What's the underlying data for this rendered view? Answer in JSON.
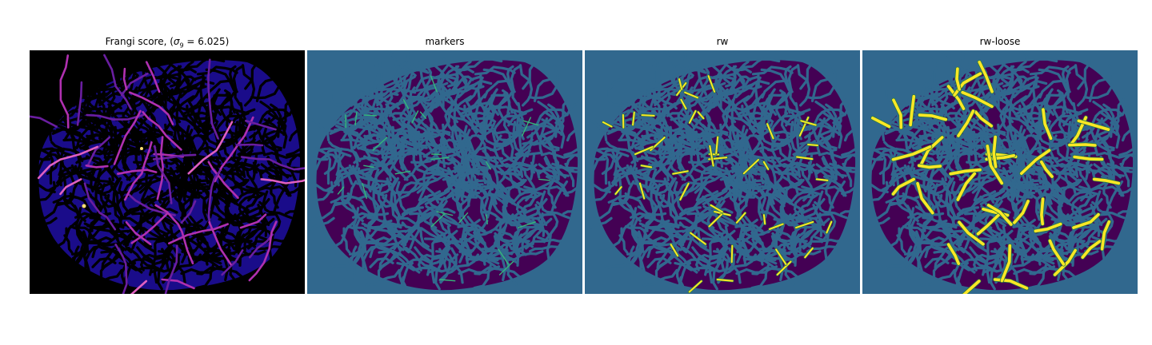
{
  "figure": {
    "panels": [
      {
        "id": "frangi",
        "title_prefix": "Frangi score, (",
        "sigma_symbol": "σ",
        "sigma_sub": "9",
        "title_suffix": " = 6.025)"
      },
      {
        "id": "markers",
        "title": "markers"
      },
      {
        "id": "rw",
        "title": "rw"
      },
      {
        "id": "rw-loose",
        "title": "rw-loose"
      }
    ],
    "colors": {
      "frangi_background": "#000000",
      "frangi_tissue": "#1a0c8a",
      "frangi_vessel_low": "#6a1ea0",
      "frangi_vessel_high": "#e060c0",
      "frangi_vessel_peak": "#ffe070",
      "label_background": "#31688e",
      "label_tissue": "#440154",
      "label_marker": "#35b779",
      "label_vessel": "#fde725"
    }
  }
}
